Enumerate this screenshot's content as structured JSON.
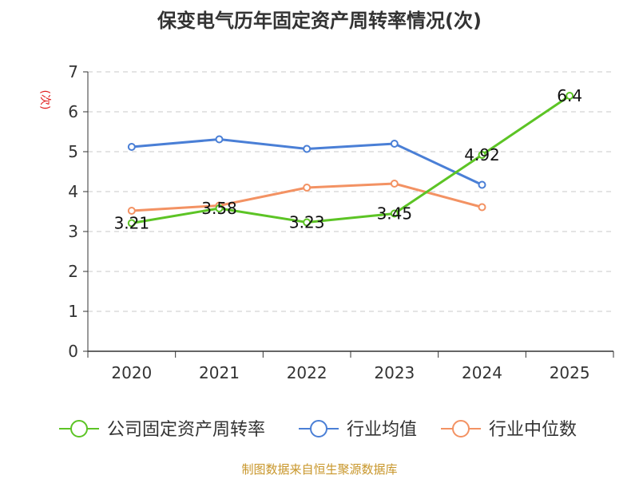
{
  "chart_data": {
    "type": "line",
    "title": "保变电气历年固定资产周转率情况(次)",
    "ylabel": "(次)",
    "xlabel": "",
    "categories": [
      "2020",
      "2021",
      "2022",
      "2023",
      "2024",
      "2025"
    ],
    "ylim": [
      0,
      7
    ],
    "yticks": [
      "0",
      "1",
      "2",
      "3",
      "4",
      "5",
      "6",
      "7"
    ],
    "grid": true,
    "series": [
      {
        "name": "公司固定资产周转率",
        "color": "#5cc425",
        "values": [
          3.21,
          3.58,
          3.23,
          3.45,
          4.92,
          6.4
        ],
        "labels": [
          "3.21",
          "3.58",
          "3.23",
          "3.45",
          "4.92",
          "6.4"
        ]
      },
      {
        "name": "行业均值",
        "color": "#4a7fd6",
        "values": [
          5.12,
          5.31,
          5.07,
          5.2,
          4.17,
          null
        ]
      },
      {
        "name": "行业中位数",
        "color": "#f39263",
        "values": [
          3.52,
          3.65,
          4.1,
          4.2,
          3.61,
          null
        ]
      }
    ],
    "legend": "bottom",
    "source": "制图数据来自恒生聚源数据库"
  }
}
